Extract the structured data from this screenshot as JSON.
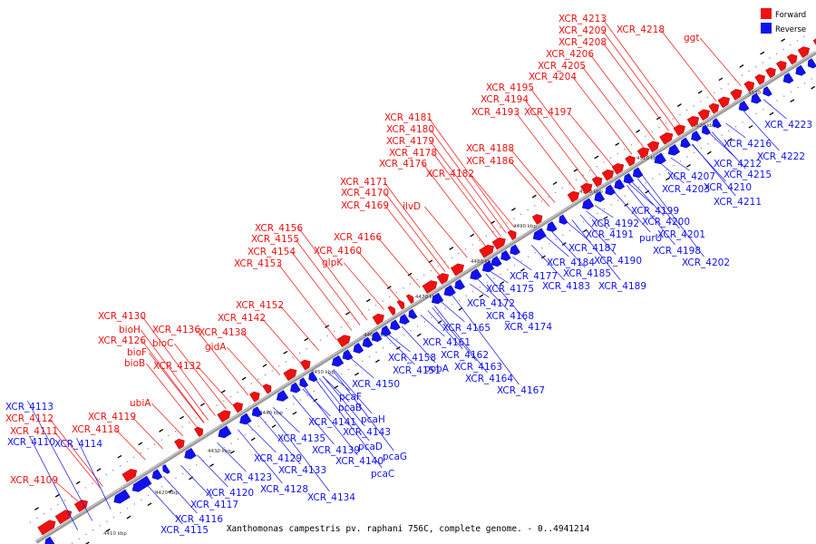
{
  "caption": "Xanthomonas campestris pv. raphani 756C, complete genome. - 0..4941214",
  "legend": [
    {
      "label": "Forward",
      "color": "#ee1111"
    },
    {
      "label": "Reverse",
      "color": "#1111ee"
    }
  ],
  "colors": {
    "forward": "#ee1111",
    "reverse": "#1111ee",
    "axis": "#999999"
  },
  "ticks": [
    "4410 kbp",
    "4420 kbp",
    "4430 kbp",
    "4440 kbp",
    "4450 kbp",
    "4460 kbp",
    "4470 kbp",
    "4480 kbp",
    "4490 kbp",
    "4500 kbp",
    "4510 kbp",
    "4520 kbp",
    "4530 kbp"
  ],
  "forward_labels": [
    "XCR_4213",
    "XCR_4218",
    "ggt",
    "XCR_4209",
    "XCR_4208",
    "XCR_4206",
    "XCR_4205",
    "XCR_4204",
    "XCR_4195",
    "XCR_4194",
    "XCR_4193",
    "XCR_4197",
    "XCR_4181",
    "XCR_4180",
    "XCR_4179",
    "XCR_4178",
    "XCR_4176",
    "XCR_4188",
    "XCR_4186",
    "XCR_4182",
    "XCR_4171",
    "XCR_4170",
    "XCR_4169",
    "ilvD",
    "XCR_4156",
    "XCR_4155",
    "XCR_4154",
    "XCR_4153",
    "XCR_4166",
    "XCR_4160",
    "glpK",
    "XCR_4152",
    "XCR_4142",
    "XCR_4130",
    "bioH",
    "XCR_4126",
    "bioF",
    "bioB",
    "XCR_4136",
    "bioC",
    "XCR_4138",
    "gidA",
    "XCR_4132",
    "ubiA",
    "XCR_4119",
    "XCR_4118",
    "XCR_4112",
    "XCR_4111",
    "XCR_4109"
  ],
  "reverse_labels": [
    "XCR_4223",
    "XCR_4216",
    "XCR_4222",
    "XCR_4212",
    "XCR_4215",
    "XCR_4207",
    "XCR_4210",
    "XCR_4203",
    "XCR_4211",
    "XCR_4199",
    "XCR_4192",
    "XCR_4200",
    "XCR_4201",
    "XCR_4191",
    "purU",
    "XCR_4198",
    "XCR_4187",
    "XCR_4190",
    "XCR_4202",
    "XCR_4184",
    "XCR_4185",
    "XCR_4177",
    "XCR_4183",
    "XCR_4189",
    "XCR_4175",
    "XCR_4172",
    "XCR_4168",
    "XCR_4174",
    "XCR_4165",
    "XCR_4161",
    "XCR_4162",
    "XCR_4158",
    "XCR_4163",
    "pobA",
    "XCR_4164",
    "XCR_4151",
    "XCR_4167",
    "XCR_4150",
    "pcaF",
    "pcaB",
    "pcaH",
    "XCR_4141",
    "XCR_4143",
    "XCR_4135",
    "XCR_4139",
    "pcaD",
    "pcaG",
    "XCR_4140",
    "pcaC",
    "XCR_4129",
    "XCR_4133",
    "XCR_4134",
    "XCR_4123",
    "XCR_4128",
    "XCR_4120",
    "XCR_4117",
    "XCR_4116",
    "XCR_4115",
    "XCR_4113",
    "XCR_4110",
    "XCR_4114"
  ]
}
